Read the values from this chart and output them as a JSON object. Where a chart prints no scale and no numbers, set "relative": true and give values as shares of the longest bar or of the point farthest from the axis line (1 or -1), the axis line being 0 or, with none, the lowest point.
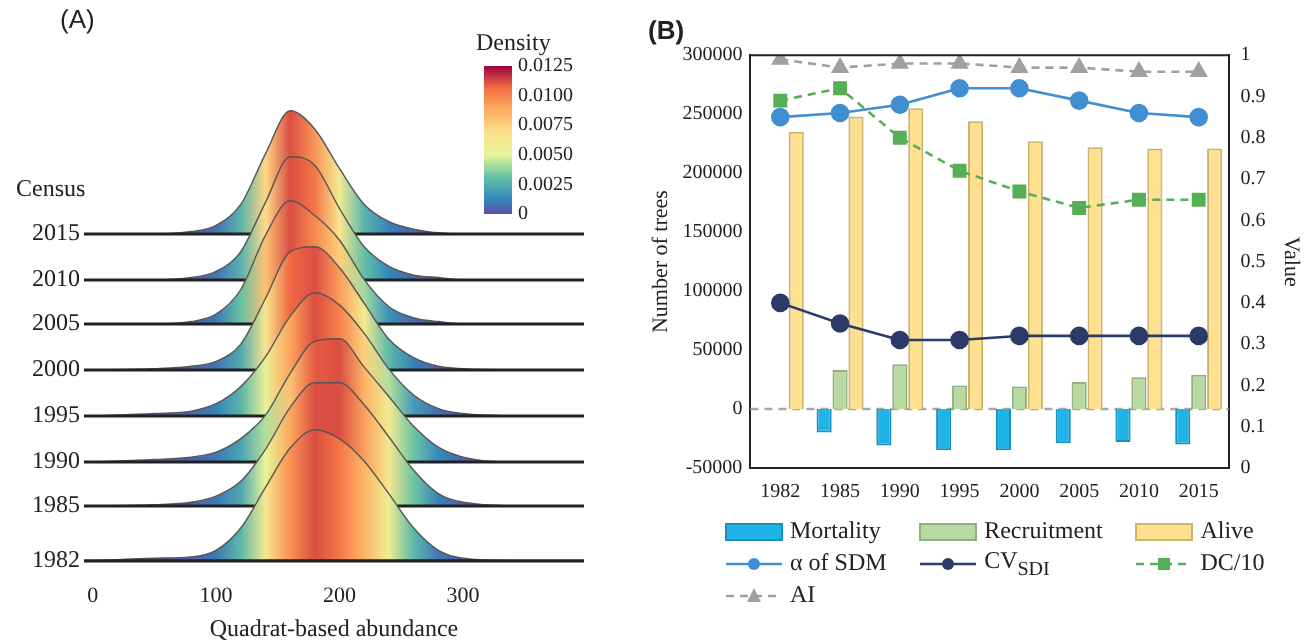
{
  "chart_data": [
    {
      "type": "area",
      "relative": true,
      "title": "(A)",
      "ylabel": "Census",
      "annotations": [
        "Density",
        "0.0125",
        "0.0100",
        "0.0075",
        "0.0050",
        "0.0025",
        "0"
      ],
      "x": [
        0,
        50,
        80,
        100,
        120,
        140,
        160,
        180,
        200,
        220,
        240,
        260,
        280,
        300,
        350,
        398
      ],
      "xlim": [
        -7,
        398
      ],
      "tick_labels": false,
      "series": [
        {
          "name": "2015",
          "values": [
            0,
            0,
            0.02,
            0.07,
            0.24,
            0.65,
            1,
            0.85,
            0.53,
            0.24,
            0.1,
            0.04,
            0.01,
            0,
            0,
            0
          ]
        }
      ]
    },
    {
      "type": "area",
      "relative": true,
      "x": [
        0,
        50,
        80,
        100,
        120,
        140,
        160,
        180,
        200,
        220,
        240,
        260,
        280,
        300,
        350,
        398
      ],
      "xlim": [
        -7,
        398
      ],
      "tick_labels": false,
      "series": [
        {
          "name": "2010",
          "values": [
            0,
            0,
            0.02,
            0.07,
            0.23,
            0.63,
            1,
            0.93,
            0.58,
            0.27,
            0.11,
            0.04,
            0.02,
            0,
            0,
            0
          ]
        }
      ]
    },
    {
      "type": "area",
      "relative": true,
      "x": [
        0,
        50,
        80,
        100,
        120,
        140,
        160,
        180,
        200,
        220,
        240,
        260,
        280,
        300,
        350,
        398
      ],
      "xlim": [
        -7,
        398
      ],
      "tick_labels": false,
      "series": [
        {
          "name": "2005",
          "values": [
            0,
            0,
            0.02,
            0.08,
            0.28,
            0.72,
            1,
            0.88,
            0.68,
            0.36,
            0.14,
            0.05,
            0.02,
            0,
            0,
            0
          ]
        }
      ]
    },
    {
      "type": "area",
      "relative": true,
      "x": [
        0,
        50,
        80,
        100,
        120,
        140,
        160,
        180,
        200,
        220,
        240,
        260,
        280,
        300,
        350,
        398
      ],
      "xlim": [
        -7,
        398
      ],
      "tick_labels": false,
      "series": [
        {
          "name": "2000",
          "values": [
            0,
            0.01,
            0.03,
            0.07,
            0.21,
            0.58,
            0.96,
            1,
            0.83,
            0.54,
            0.25,
            0.1,
            0.03,
            0.01,
            0,
            0
          ]
        }
      ]
    },
    {
      "type": "area",
      "relative": true,
      "x": [
        0,
        50,
        80,
        100,
        120,
        140,
        160,
        180,
        200,
        220,
        240,
        260,
        280,
        300,
        350,
        398
      ],
      "xlim": [
        -7,
        398
      ],
      "tick_labels": false,
      "series": [
        {
          "name": "1995",
          "values": [
            0,
            0.02,
            0.04,
            0.1,
            0.24,
            0.48,
            0.81,
            1,
            0.9,
            0.67,
            0.38,
            0.17,
            0.06,
            0.02,
            0,
            0
          ]
        }
      ]
    },
    {
      "type": "area",
      "relative": true,
      "x": [
        0,
        50,
        80,
        100,
        120,
        140,
        160,
        180,
        200,
        220,
        240,
        260,
        280,
        300,
        350,
        398
      ],
      "xlim": [
        -7,
        398
      ],
      "tick_labels": false,
      "series": [
        {
          "name": "1990",
          "values": [
            0,
            0.02,
            0.04,
            0.08,
            0.19,
            0.38,
            0.72,
            0.98,
            1,
            0.77,
            0.53,
            0.29,
            0.12,
            0.04,
            0,
            0
          ]
        }
      ]
    },
    {
      "type": "area",
      "relative": true,
      "x": [
        0,
        50,
        80,
        100,
        120,
        140,
        160,
        180,
        200,
        220,
        240,
        260,
        280,
        300,
        350,
        398
      ],
      "xlim": [
        -7,
        398
      ],
      "tick_labels": false,
      "series": [
        {
          "name": "1985",
          "values": [
            0,
            0.01,
            0.03,
            0.08,
            0.2,
            0.46,
            0.8,
            1,
            1,
            0.82,
            0.56,
            0.29,
            0.1,
            0.03,
            0,
            0
          ]
        }
      ]
    },
    {
      "type": "area",
      "relative": true,
      "xlabel": "Quadrat-based abundance",
      "x": [
        0,
        50,
        80,
        100,
        120,
        140,
        160,
        180,
        200,
        220,
        240,
        260,
        280,
        300,
        350,
        398
      ],
      "xlim": [
        -7,
        398
      ],
      "xticks": [
        0,
        100,
        200,
        300
      ],
      "tick_labels": "x",
      "series": [
        {
          "name": "1982",
          "values": [
            0,
            0.02,
            0.03,
            0.08,
            0.25,
            0.56,
            0.86,
            1,
            0.93,
            0.76,
            0.51,
            0.25,
            0.08,
            0.02,
            0,
            0
          ]
        }
      ]
    },
    {
      "type": "bar",
      "title": "(B)",
      "ylabel": "Number of trees",
      "y2label": "Value",
      "categories": [
        "1982",
        "1985",
        "1990",
        "1995",
        "2000",
        "2005",
        "2010",
        "2015"
      ],
      "series": [
        {
          "name": "Mortality",
          "color": "#1fb3e8",
          "values": [
            0,
            -20000,
            -31000,
            -35000,
            -35000,
            -29000,
            -28000,
            -30000
          ]
        },
        {
          "name": "Recruitment",
          "color": "#b8d9a0",
          "values": [
            0,
            33000,
            38000,
            20000,
            19000,
            23000,
            27000,
            29000
          ]
        },
        {
          "name": "Alive",
          "color": "#ffe08f",
          "values": [
            235000,
            248000,
            255000,
            244000,
            227000,
            222000,
            221000,
            221000
          ]
        },
        {
          "name": "α of SDM",
          "type": "line",
          "axis": "y2",
          "color": "#3f8fd2",
          "marker": "circle",
          "line_style": "solid",
          "values": [
            0.85,
            0.86,
            0.88,
            0.92,
            0.92,
            0.89,
            0.86,
            0.85
          ]
        },
        {
          "name": "CV$_{SDI}$",
          "type": "line",
          "axis": "y2",
          "color": "#2b3a67",
          "marker": "circle",
          "line_style": "solid",
          "values": [
            0.4,
            0.35,
            0.31,
            0.31,
            0.32,
            0.32,
            0.32,
            0.32
          ]
        },
        {
          "name": "DC/10",
          "type": "line",
          "axis": "y2",
          "color": "#55b055",
          "marker": "square",
          "line_style": "dashed",
          "values": [
            0.89,
            0.92,
            0.8,
            0.72,
            0.67,
            0.63,
            0.65,
            0.65
          ]
        },
        {
          "name": "AI",
          "type": "line",
          "axis": "y2",
          "color": "#a0a0a0",
          "marker": "triangle",
          "line_style": "dashed",
          "values": [
            0.99,
            0.97,
            0.98,
            0.98,
            0.97,
            0.97,
            0.96,
            0.96
          ]
        }
      ],
      "ylim": [
        -50000,
        300000
      ],
      "yticks": [
        -50000,
        0,
        50000,
        100000,
        150000,
        200000,
        250000,
        300000
      ],
      "y2lim": [
        0,
        1
      ],
      "y2ticks": [
        0,
        0.1,
        0.2,
        0.3,
        0.4,
        0.5,
        0.6,
        0.7,
        0.8,
        0.9,
        1
      ],
      "ref_lines": [
        {
          "axis": "y",
          "value": 0,
          "color": "#a8a8a8",
          "line_style": "dashed"
        }
      ],
      "legend": "bottom"
    }
  ]
}
